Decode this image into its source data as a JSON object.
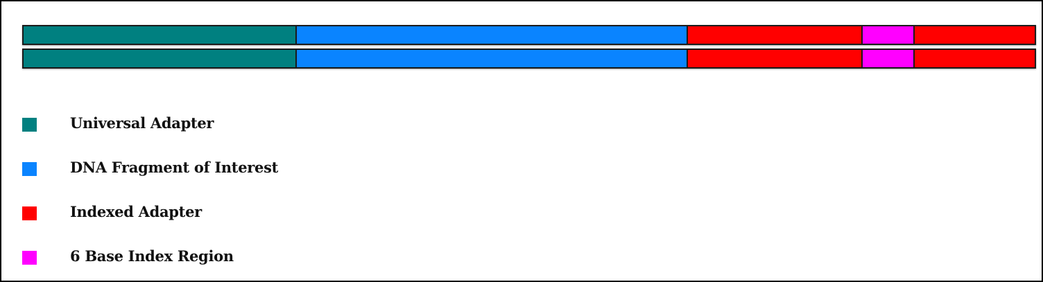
{
  "segments": [
    {
      "name": "universal-adapter",
      "color": "#008080",
      "fraction": 0.27
    },
    {
      "name": "dna-fragment",
      "color": "#0A84FF",
      "fraction": 0.388
    },
    {
      "name": "indexed-adapter",
      "color": "#FF0000",
      "fraction": 0.172
    },
    {
      "name": "index-region",
      "color": "#FF00FF",
      "fraction": 0.051
    },
    {
      "name": "indexed-adapter",
      "color": "#FF0000",
      "fraction": 0.119
    }
  ],
  "legend": {
    "items": [
      {
        "label": "Universal Adapter",
        "color": "#008080"
      },
      {
        "label": "DNA Fragment of Interest",
        "color": "#0A84FF"
      },
      {
        "label": "Indexed Adapter",
        "color": "#FF0000"
      },
      {
        "label": "6 Base Index Region",
        "color": "#FF00FF"
      }
    ]
  }
}
